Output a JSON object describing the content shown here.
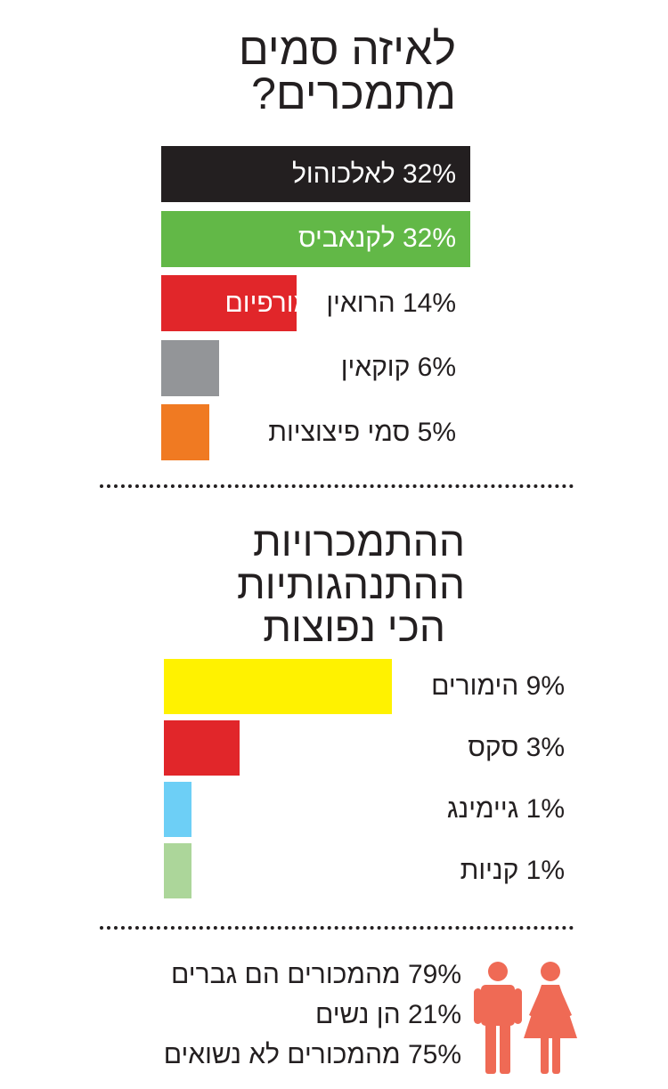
{
  "drugs_section": {
    "title_line1": "לאיזה סמים",
    "title_line2": "מתמכרים?"
  },
  "behavior_section": {
    "title_line1": "ההתמכרויות",
    "title_line2": "ההתנהגותיות",
    "title_line3": "הכי נפוצות"
  },
  "chart_data": [
    {
      "type": "bar",
      "orientation": "horizontal",
      "title": "לאיזה סמים מתמכרים?",
      "categories": [
        "לאלכוהול",
        "לקנאביס",
        "הרואין ומורפיום",
        "קוקאין",
        "סמי פיצוציות"
      ],
      "values": [
        32,
        32,
        14,
        6,
        5
      ],
      "unit": "%",
      "colors": [
        "#231f20",
        "#62b847",
        "#e1262a",
        "#939598",
        "#f07a22"
      ],
      "labels": [
        {
          "pct": "32%",
          "text": "לאלכוהול",
          "text2": ""
        },
        {
          "pct": "32%",
          "text": "לקנאביס",
          "text2": ""
        },
        {
          "pct": "14%",
          "text": "הרואין",
          "text2": "ומורפיום"
        },
        {
          "pct": "6%",
          "text": "קוקאין",
          "text2": ""
        },
        {
          "pct": "5%",
          "text": "סמי פיצוציות",
          "text2": ""
        }
      ]
    },
    {
      "type": "bar",
      "orientation": "horizontal",
      "title": "ההתמכרויות ההתנהגותיות הכי נפוצות",
      "categories": [
        "הימורים",
        "סקס",
        "גיימינג",
        "קניות"
      ],
      "values": [
        9,
        3,
        1,
        1
      ],
      "unit": "%",
      "colors": [
        "#fff200",
        "#e1262a",
        "#6dcff6",
        "#acd69a"
      ],
      "labels": [
        {
          "pct": "9%",
          "text": "הימורים",
          "text2": ""
        },
        {
          "pct": "3%",
          "text": "סקס",
          "text2": ""
        },
        {
          "pct": "1%",
          "text": "גיימינג",
          "text2": ""
        },
        {
          "pct": "1%",
          "text": "קניות",
          "text2": ""
        }
      ]
    }
  ],
  "stats": [
    {
      "pct": "79%",
      "text": "מהמכורים הם גברים"
    },
    {
      "pct": "21%",
      "text": "הן נשים"
    },
    {
      "pct": "75%",
      "text": "מהמכורים לא נשואים"
    }
  ],
  "icons": {
    "people": "man-woman-icon",
    "people_color": "#ef6a55"
  }
}
